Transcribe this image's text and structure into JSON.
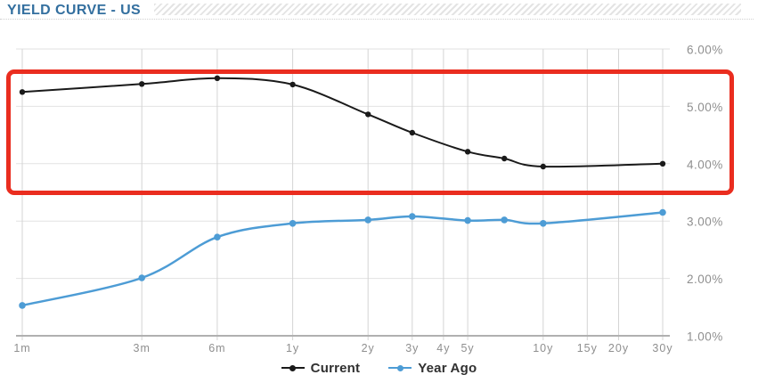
{
  "header": {
    "title": "YIELD CURVE - US",
    "title_color": "#336f9f"
  },
  "chart_data": {
    "type": "line",
    "title": "YIELD CURVE - US",
    "x_axis": {
      "scale": "log",
      "unit": "maturity",
      "ticks": [
        {
          "label": "1m",
          "years": 0.0833
        },
        {
          "label": "3m",
          "years": 0.25
        },
        {
          "label": "6m",
          "years": 0.5
        },
        {
          "label": "1y",
          "years": 1
        },
        {
          "label": "2y",
          "years": 2
        },
        {
          "label": "3y",
          "years": 3
        },
        {
          "label": "4y",
          "years": 4
        },
        {
          "label": "5y",
          "years": 5
        },
        {
          "label": "10y",
          "years": 10
        },
        {
          "label": "15y",
          "years": 15
        },
        {
          "label": "20y",
          "years": 20
        },
        {
          "label": "30y",
          "years": 30
        }
      ]
    },
    "y_axis": {
      "side": "right",
      "min": 1,
      "max": 6,
      "step": 1,
      "tick_labels": [
        "6.00%",
        "5.00%",
        "4.00%",
        "3.00%",
        "2.00%",
        "1.00%"
      ]
    },
    "grid": true,
    "legend_position": "bottom",
    "series": [
      {
        "name": "Current",
        "color": "#1a1a1a",
        "points": [
          {
            "maturity": "1m",
            "years": 0.0833,
            "value": 5.25
          },
          {
            "maturity": "3m",
            "years": 0.25,
            "value": 5.39
          },
          {
            "maturity": "6m",
            "years": 0.5,
            "value": 5.49
          },
          {
            "maturity": "1y",
            "years": 1,
            "value": 5.38
          },
          {
            "maturity": "2y",
            "years": 2,
            "value": 4.86
          },
          {
            "maturity": "3y",
            "years": 3,
            "value": 4.54
          },
          {
            "maturity": "5y",
            "years": 5,
            "value": 4.21
          },
          {
            "maturity": "7y",
            "years": 7,
            "value": 4.09
          },
          {
            "maturity": "10y",
            "years": 10,
            "value": 3.95
          },
          {
            "maturity": "30y",
            "years": 30,
            "value": 4.0
          }
        ]
      },
      {
        "name": "Year Ago",
        "color": "#4d9cd5",
        "points": [
          {
            "maturity": "1m",
            "years": 0.0833,
            "value": 1.53
          },
          {
            "maturity": "3m",
            "years": 0.25,
            "value": 2.01
          },
          {
            "maturity": "6m",
            "years": 0.5,
            "value": 2.72
          },
          {
            "maturity": "1y",
            "years": 1,
            "value": 2.96
          },
          {
            "maturity": "2y",
            "years": 2,
            "value": 3.02
          },
          {
            "maturity": "3y",
            "years": 3,
            "value": 3.08
          },
          {
            "maturity": "5y",
            "years": 5,
            "value": 3.01
          },
          {
            "maturity": "7y",
            "years": 7,
            "value": 3.02
          },
          {
            "maturity": "10y",
            "years": 10,
            "value": 2.96
          },
          {
            "maturity": "30y",
            "years": 30,
            "value": 3.15
          }
        ]
      }
    ],
    "annotation": {
      "shape": "rounded-rectangle",
      "color": "#ea2d1f",
      "highlight_value_range_percent": [
        3.5,
        5.6
      ]
    }
  }
}
